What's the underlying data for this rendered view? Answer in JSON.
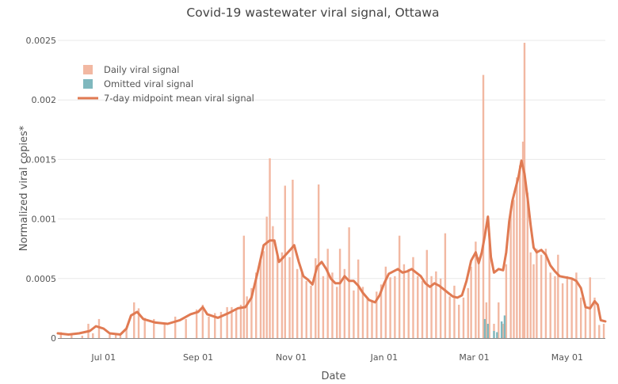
{
  "chart_data": {
    "type": "bar",
    "title": "Covid-19 wastewater viral signal, Ottawa",
    "xlabel": "Date",
    "ylabel": "Normalized viral copies*",
    "x_range": [
      "2020-06-01",
      "2021-05-26"
    ],
    "ylim": [
      0,
      0.0026
    ],
    "x_ticks": [
      {
        "date": "2020-07-01",
        "label": "Jul 01"
      },
      {
        "date": "2020-09-01",
        "label": "Sep 01"
      },
      {
        "date": "2020-11-01",
        "label": "Nov 01"
      },
      {
        "date": "2021-01-01",
        "label": "Jan 01"
      },
      {
        "date": "2021-03-01",
        "label": "Mar 01"
      },
      {
        "date": "2021-05-01",
        "label": "May 01"
      }
    ],
    "y_ticks": [
      {
        "value": 0,
        "label": "0"
      },
      {
        "value": 0.0005,
        "label": "0.0005"
      },
      {
        "value": 0.001,
        "label": "0.001"
      },
      {
        "value": 0.0015,
        "label": "0.0015"
      },
      {
        "value": 0.002,
        "label": "0.002"
      },
      {
        "value": 0.0025,
        "label": "0.0025"
      }
    ],
    "grid": true,
    "legend_position": "top-left",
    "legend": [
      {
        "label": "Daily viral signal",
        "kind": "bar",
        "color": "#f2b8a2"
      },
      {
        "label": "Omitted viral signal",
        "kind": "bar",
        "color": "#7fb8be"
      },
      {
        "label": "7-day midpoint mean viral signal",
        "kind": "line",
        "color": "#e07a52"
      }
    ],
    "series": [
      {
        "name": "Daily viral signal",
        "color": "#f2b8a2",
        "points": [
          [
            "2020-06-03",
            5e-05
          ],
          [
            "2020-06-10",
            3e-05
          ],
          [
            "2020-06-17",
            2e-05
          ],
          [
            "2020-06-21",
            0.00012
          ],
          [
            "2020-06-24",
            4e-05
          ],
          [
            "2020-06-28",
            0.00016
          ],
          [
            "2020-07-05",
            3e-05
          ],
          [
            "2020-07-09",
            4e-05
          ],
          [
            "2020-07-12",
            2e-05
          ],
          [
            "2020-07-16",
            9e-05
          ],
          [
            "2020-07-21",
            0.0003
          ],
          [
            "2020-07-24",
            0.00025
          ],
          [
            "2020-07-28",
            0.00017
          ],
          [
            "2020-08-03",
            0.00016
          ],
          [
            "2020-08-10",
            0.00012
          ],
          [
            "2020-08-17",
            0.00018
          ],
          [
            "2020-08-24",
            0.00016
          ],
          [
            "2020-08-31",
            0.00024
          ],
          [
            "2020-09-04",
            0.00028
          ],
          [
            "2020-09-08",
            0.00018
          ],
          [
            "2020-09-12",
            0.00021
          ],
          [
            "2020-09-16",
            0.00022
          ],
          [
            "2020-09-20",
            0.00026
          ],
          [
            "2020-09-23",
            0.00026
          ],
          [
            "2020-09-26",
            0.00024
          ],
          [
            "2020-09-29",
            0.00028
          ],
          [
            "2020-10-01",
            0.00086
          ],
          [
            "2020-10-03",
            0.00035
          ],
          [
            "2020-10-06",
            0.00042
          ],
          [
            "2020-10-09",
            0.00055
          ],
          [
            "2020-10-12",
            0.00065
          ],
          [
            "2020-10-14",
            0.00073
          ],
          [
            "2020-10-16",
            0.00102
          ],
          [
            "2020-10-18",
            0.00151
          ],
          [
            "2020-10-20",
            0.00094
          ],
          [
            "2020-10-23",
            0.00068
          ],
          [
            "2020-10-26",
            0.00072
          ],
          [
            "2020-10-28",
            0.00128
          ],
          [
            "2020-10-31",
            0.00068
          ],
          [
            "2020-11-02",
            0.00133
          ],
          [
            "2020-11-05",
            0.00058
          ],
          [
            "2020-11-08",
            0.00055
          ],
          [
            "2020-11-11",
            0.00048
          ],
          [
            "2020-11-14",
            0.00044
          ],
          [
            "2020-11-17",
            0.00067
          ],
          [
            "2020-11-19",
            0.00129
          ],
          [
            "2020-11-22",
            0.00052
          ],
          [
            "2020-11-25",
            0.00075
          ],
          [
            "2020-11-28",
            0.00055
          ],
          [
            "2020-12-01",
            0.00043
          ],
          [
            "2020-12-03",
            0.00075
          ],
          [
            "2020-12-06",
            0.00058
          ],
          [
            "2020-12-09",
            0.00093
          ],
          [
            "2020-12-12",
            0.0004
          ],
          [
            "2020-12-15",
            0.00066
          ],
          [
            "2020-12-18",
            0.00043
          ],
          [
            "2020-12-21",
            0.00033
          ],
          [
            "2020-12-24",
            0.00032
          ],
          [
            "2020-12-27",
            0.00039
          ],
          [
            "2020-12-30",
            0.00045
          ],
          [
            "2021-01-02",
            0.0006
          ],
          [
            "2021-01-05",
            0.00051
          ],
          [
            "2021-01-08",
            0.00052
          ],
          [
            "2021-01-11",
            0.00086
          ],
          [
            "2021-01-14",
            0.00062
          ],
          [
            "2021-01-17",
            0.00058
          ],
          [
            "2021-01-20",
            0.00068
          ],
          [
            "2021-01-23",
            0.00052
          ],
          [
            "2021-01-26",
            0.00048
          ],
          [
            "2021-01-29",
            0.00074
          ],
          [
            "2021-02-01",
            0.00052
          ],
          [
            "2021-02-04",
            0.00056
          ],
          [
            "2021-02-07",
            0.0005
          ],
          [
            "2021-02-10",
            0.00088
          ],
          [
            "2021-02-13",
            0.00035
          ],
          [
            "2021-02-16",
            0.00044
          ],
          [
            "2021-02-19",
            0.00028
          ],
          [
            "2021-02-22",
            0.00034
          ],
          [
            "2021-02-25",
            0.00042
          ],
          [
            "2021-02-27",
            0.0006
          ],
          [
            "2021-03-02",
            0.00081
          ],
          [
            "2021-03-04",
            0.00068
          ],
          [
            "2021-03-07",
            0.00221
          ],
          [
            "2021-03-09",
            0.0003
          ],
          [
            "2021-03-11",
            0.00088
          ],
          [
            "2021-03-14",
            0.00012
          ],
          [
            "2021-03-17",
            0.0003
          ],
          [
            "2021-03-20",
            0.00012
          ],
          [
            "2021-03-22",
            0.00062
          ],
          [
            "2021-03-25",
            0.00108
          ],
          [
            "2021-03-27",
            0.00116
          ],
          [
            "2021-03-29",
            0.00135
          ],
          [
            "2021-03-31",
            0.00145
          ],
          [
            "2021-04-02",
            0.00165
          ],
          [
            "2021-04-03",
            0.00248
          ],
          [
            "2021-04-05",
            0.00122
          ],
          [
            "2021-04-07",
            0.00072
          ],
          [
            "2021-04-09",
            0.00062
          ],
          [
            "2021-04-11",
            0.00075
          ],
          [
            "2021-04-14",
            0.0007
          ],
          [
            "2021-04-17",
            0.00075
          ],
          [
            "2021-04-20",
            0.00055
          ],
          [
            "2021-04-23",
            0.00052
          ],
          [
            "2021-04-25",
            0.0007
          ],
          [
            "2021-04-28",
            0.00046
          ],
          [
            "2021-05-01",
            0.00052
          ],
          [
            "2021-05-04",
            0.0005
          ],
          [
            "2021-05-07",
            0.00055
          ],
          [
            "2021-05-10",
            0.00034
          ],
          [
            "2021-05-13",
            0.00026
          ],
          [
            "2021-05-16",
            0.00051
          ],
          [
            "2021-05-19",
            0.00034
          ],
          [
            "2021-05-22",
            0.00011
          ],
          [
            "2021-05-25",
            0.00012
          ]
        ]
      },
      {
        "name": "Omitted viral signal",
        "color": "#7fb8be",
        "points": [
          [
            "2021-03-08",
            0.00016
          ],
          [
            "2021-03-10",
            0.00012
          ],
          [
            "2021-03-14",
            6e-05
          ],
          [
            "2021-03-16",
            5e-05
          ],
          [
            "2021-03-19",
            0.00014
          ],
          [
            "2021-03-21",
            0.00019
          ]
        ]
      },
      {
        "name": "7-day midpoint mean viral signal",
        "color": "#e07a52",
        "points": [
          [
            "2020-06-01",
            4e-05
          ],
          [
            "2020-06-08",
            3e-05
          ],
          [
            "2020-06-15",
            4e-05
          ],
          [
            "2020-06-22",
            6e-05
          ],
          [
            "2020-06-26",
            0.0001
          ],
          [
            "2020-07-01",
            8e-05
          ],
          [
            "2020-07-05",
            4e-05
          ],
          [
            "2020-07-12",
            3e-05
          ],
          [
            "2020-07-16",
            8e-05
          ],
          [
            "2020-07-19",
            0.00019
          ],
          [
            "2020-07-23",
            0.00022
          ],
          [
            "2020-07-27",
            0.00016
          ],
          [
            "2020-08-04",
            0.00013
          ],
          [
            "2020-08-12",
            0.00012
          ],
          [
            "2020-08-20",
            0.00015
          ],
          [
            "2020-08-27",
            0.0002
          ],
          [
            "2020-09-01",
            0.00022
          ],
          [
            "2020-09-04",
            0.00026
          ],
          [
            "2020-09-07",
            0.0002
          ],
          [
            "2020-09-14",
            0.00017
          ],
          [
            "2020-09-21",
            0.00021
          ],
          [
            "2020-09-27",
            0.00025
          ],
          [
            "2020-10-02",
            0.00026
          ],
          [
            "2020-10-06",
            0.00034
          ],
          [
            "2020-10-10",
            0.00055
          ],
          [
            "2020-10-14",
            0.00078
          ],
          [
            "2020-10-18",
            0.00082
          ],
          [
            "2020-10-21",
            0.00082
          ],
          [
            "2020-10-24",
            0.00064
          ],
          [
            "2020-10-27",
            0.00068
          ],
          [
            "2020-11-01",
            0.00075
          ],
          [
            "2020-11-03",
            0.00078
          ],
          [
            "2020-11-06",
            0.00064
          ],
          [
            "2020-11-09",
            0.00052
          ],
          [
            "2020-11-12",
            0.00049
          ],
          [
            "2020-11-15",
            0.00045
          ],
          [
            "2020-11-18",
            0.0006
          ],
          [
            "2020-11-21",
            0.00064
          ],
          [
            "2020-11-24",
            0.00058
          ],
          [
            "2020-11-27",
            0.0005
          ],
          [
            "2020-11-30",
            0.00046
          ],
          [
            "2020-12-03",
            0.00046
          ],
          [
            "2020-12-06",
            0.00052
          ],
          [
            "2020-12-09",
            0.00048
          ],
          [
            "2020-12-12",
            0.00048
          ],
          [
            "2020-12-15",
            0.00044
          ],
          [
            "2020-12-18",
            0.00038
          ],
          [
            "2020-12-22",
            0.00032
          ],
          [
            "2020-12-26",
            0.0003
          ],
          [
            "2020-12-29",
            0.00036
          ],
          [
            "2021-01-01",
            0.00046
          ],
          [
            "2021-01-04",
            0.00054
          ],
          [
            "2021-01-07",
            0.00056
          ],
          [
            "2021-01-10",
            0.00058
          ],
          [
            "2021-01-13",
            0.00055
          ],
          [
            "2021-01-16",
            0.00056
          ],
          [
            "2021-01-19",
            0.00058
          ],
          [
            "2021-01-22",
            0.00055
          ],
          [
            "2021-01-25",
            0.00052
          ],
          [
            "2021-01-28",
            0.00046
          ],
          [
            "2021-01-31",
            0.00043
          ],
          [
            "2021-02-03",
            0.00046
          ],
          [
            "2021-02-06",
            0.00044
          ],
          [
            "2021-02-09",
            0.00041
          ],
          [
            "2021-02-12",
            0.00038
          ],
          [
            "2021-02-15",
            0.00035
          ],
          [
            "2021-02-18",
            0.00034
          ],
          [
            "2021-02-21",
            0.00036
          ],
          [
            "2021-02-24",
            0.00048
          ],
          [
            "2021-02-27",
            0.00065
          ],
          [
            "2021-03-02",
            0.00072
          ],
          [
            "2021-03-04",
            0.00063
          ],
          [
            "2021-03-06",
            0.00072
          ],
          [
            "2021-03-08",
            0.00086
          ],
          [
            "2021-03-10",
            0.00102
          ],
          [
            "2021-03-12",
            0.00068
          ],
          [
            "2021-03-14",
            0.00055
          ],
          [
            "2021-03-17",
            0.00058
          ],
          [
            "2021-03-20",
            0.00057
          ],
          [
            "2021-03-22",
            0.00072
          ],
          [
            "2021-03-24",
            0.00098
          ],
          [
            "2021-03-26",
            0.00115
          ],
          [
            "2021-03-28",
            0.00125
          ],
          [
            "2021-03-30",
            0.00135
          ],
          [
            "2021-04-01",
            0.00149
          ],
          [
            "2021-04-03",
            0.00138
          ],
          [
            "2021-04-05",
            0.00118
          ],
          [
            "2021-04-07",
            0.00095
          ],
          [
            "2021-04-09",
            0.00076
          ],
          [
            "2021-04-11",
            0.00072
          ],
          [
            "2021-04-14",
            0.00074
          ],
          [
            "2021-04-17",
            0.0007
          ],
          [
            "2021-04-20",
            0.00061
          ],
          [
            "2021-04-23",
            0.00056
          ],
          [
            "2021-04-26",
            0.00052
          ],
          [
            "2021-04-30",
            0.00051
          ],
          [
            "2021-05-04",
            0.0005
          ],
          [
            "2021-05-07",
            0.00048
          ],
          [
            "2021-05-10",
            0.00042
          ],
          [
            "2021-05-13",
            0.00026
          ],
          [
            "2021-05-16",
            0.00025
          ],
          [
            "2021-05-19",
            0.00031
          ],
          [
            "2021-05-21",
            0.00028
          ],
          [
            "2021-05-23",
            0.00015
          ],
          [
            "2021-05-26",
            0.00014
          ]
        ]
      }
    ]
  }
}
